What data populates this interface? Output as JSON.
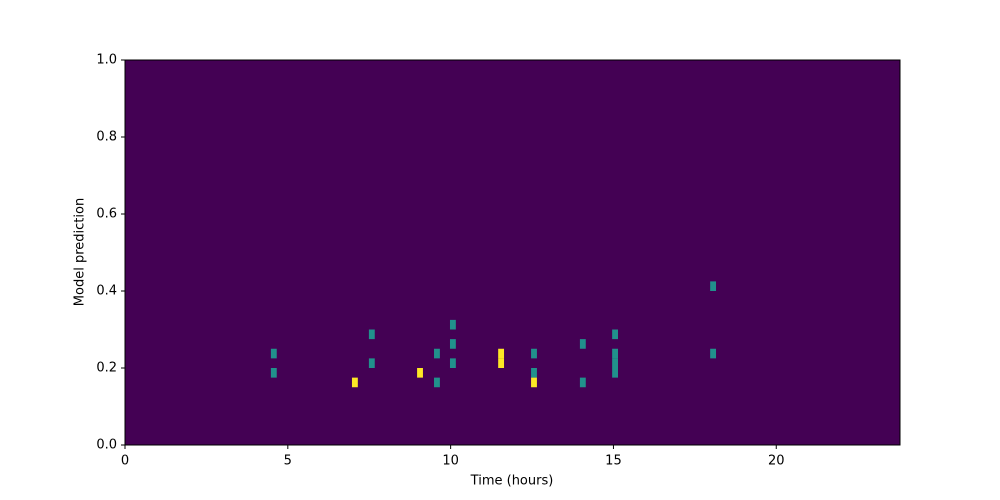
{
  "chart_data": {
    "type": "heatmap",
    "xlabel": "Time (hours)",
    "ylabel": "Model prediction",
    "xlim": [
      0,
      23.8
    ],
    "xticks": [
      0,
      5,
      10,
      15,
      20
    ],
    "ylim": [
      0,
      1
    ],
    "yticks": [
      {
        "value": 0,
        "label": "0.0"
      },
      {
        "value": 0.2,
        "label": "0.2"
      },
      {
        "value": 0.4,
        "label": "0.4"
      },
      {
        "value": 0.6,
        "label": "0.6"
      },
      {
        "value": 0.8,
        "label": "0.8"
      },
      {
        "value": 1,
        "label": "1.0"
      }
    ],
    "colors": [
      "#440154",
      "#21918c",
      "#fde725"
    ],
    "cell_width": 0.18,
    "cell_height": 0.025,
    "cells": [
      {
        "x": 4.48,
        "y": 0.225,
        "value": 1
      },
      {
        "x": 4.48,
        "y": 0.175,
        "value": 1
      },
      {
        "x": 6.97,
        "y": 0.15,
        "value": 2
      },
      {
        "x": 7.49,
        "y": 0.275,
        "value": 1
      },
      {
        "x": 7.49,
        "y": 0.2,
        "value": 1
      },
      {
        "x": 8.97,
        "y": 0.175,
        "value": 2
      },
      {
        "x": 9.49,
        "y": 0.225,
        "value": 1
      },
      {
        "x": 9.49,
        "y": 0.15,
        "value": 1
      },
      {
        "x": 9.98,
        "y": 0.3,
        "value": 1
      },
      {
        "x": 9.98,
        "y": 0.25,
        "value": 1
      },
      {
        "x": 9.98,
        "y": 0.2,
        "value": 1
      },
      {
        "x": 11.46,
        "y": 0.225,
        "value": 2
      },
      {
        "x": 11.46,
        "y": 0.2,
        "value": 2
      },
      {
        "x": 12.47,
        "y": 0.225,
        "value": 1
      },
      {
        "x": 12.47,
        "y": 0.175,
        "value": 1
      },
      {
        "x": 12.47,
        "y": 0.15,
        "value": 2
      },
      {
        "x": 13.97,
        "y": 0.25,
        "value": 1
      },
      {
        "x": 13.97,
        "y": 0.15,
        "value": 1
      },
      {
        "x": 14.96,
        "y": 0.275,
        "value": 1
      },
      {
        "x": 14.96,
        "y": 0.225,
        "value": 1
      },
      {
        "x": 14.96,
        "y": 0.2,
        "value": 1
      },
      {
        "x": 14.96,
        "y": 0.175,
        "value": 1
      },
      {
        "x": 17.97,
        "y": 0.4,
        "value": 1
      },
      {
        "x": 17.97,
        "y": 0.225,
        "value": 1
      }
    ]
  }
}
